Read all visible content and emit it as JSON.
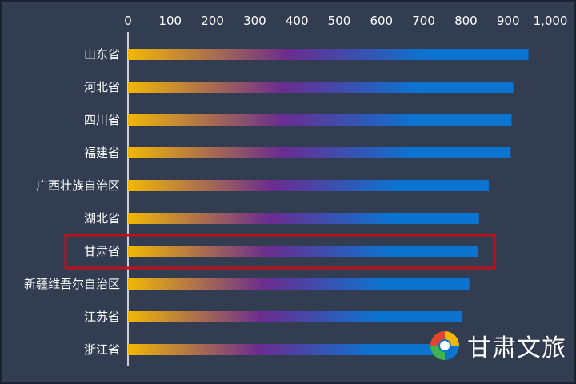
{
  "chart_data": {
    "type": "bar",
    "orientation": "horizontal",
    "categories": [
      "山东省",
      "河北省",
      "四川省",
      "福建省",
      "广西壮族自治区",
      "湖北省",
      "甘肃省",
      "新疆维吾尔自治区",
      "江苏省",
      "浙江省"
    ],
    "values": [
      948,
      912,
      908,
      906,
      854,
      831,
      829,
      808,
      792,
      775
    ],
    "xticks": [
      "0",
      "100",
      "200",
      "300",
      "400",
      "500",
      "600",
      "700",
      "800",
      "900",
      "1,000"
    ],
    "xlim": [
      0,
      1000
    ],
    "xaxis_position": "top",
    "grid": false,
    "highlighted_category": "甘肃省",
    "colors": {
      "background": "#323d52",
      "bar_gradient": [
        "#f2b705",
        "#6a2c8f",
        "#0b74d1"
      ],
      "highlight_box": "#c0101a",
      "text": "#ffffff"
    }
  },
  "watermark": {
    "text": "甘肃文旅",
    "icon": "gansu-tourism-logo-icon"
  }
}
